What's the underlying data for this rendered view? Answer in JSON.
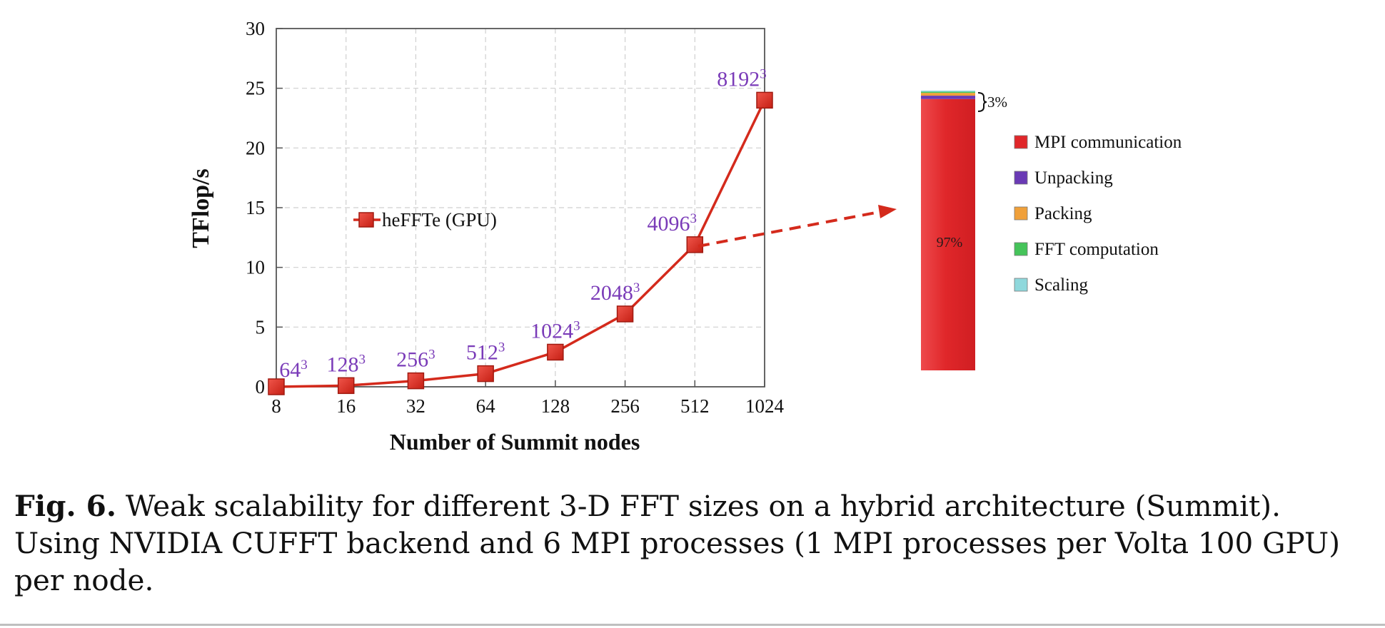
{
  "chart_data": [
    {
      "type": "line",
      "xlabel": "Number of Summit nodes",
      "ylabel": "TFlop/s",
      "categories": [
        "8",
        "16",
        "32",
        "64",
        "128",
        "256",
        "512",
        "1024"
      ],
      "y_ticks": [
        "0",
        "5",
        "10",
        "15",
        "20",
        "25",
        "30"
      ],
      "ylim": [
        0,
        30
      ],
      "grid": true,
      "legend_position": "middle-left",
      "series": [
        {
          "name": "heFFTe (GPU)",
          "color": "#d42a1c",
          "marker": "square",
          "values": [
            0.0,
            0.1,
            0.5,
            1.1,
            2.9,
            6.1,
            11.9,
            24.0
          ],
          "point_labels": [
            {
              "base": "64",
              "exp": "3"
            },
            {
              "base": "128",
              "exp": "3"
            },
            {
              "base": "256",
              "exp": "3"
            },
            {
              "base": "512",
              "exp": "3"
            },
            {
              "base": "1024",
              "exp": "3"
            },
            {
              "base": "2048",
              "exp": "3"
            },
            {
              "base": "4096",
              "exp": "3"
            },
            {
              "base": "8192",
              "exp": "3"
            }
          ]
        }
      ],
      "label_color": "#7a3bb8"
    },
    {
      "type": "bar",
      "stacked": true,
      "legend_position": "right",
      "series": [
        {
          "name": "MPI communication",
          "value": 97,
          "color": "#e0272a"
        },
        {
          "name": "Unpacking",
          "value": 1.2,
          "color": "#6a3ab5"
        },
        {
          "name": "Packing",
          "value": 1.0,
          "color": "#f0a03a"
        },
        {
          "name": "FFT computation",
          "value": 0.4,
          "color": "#45c45a"
        },
        {
          "name": "Scaling",
          "value": 0.4,
          "color": "#8fd8dc"
        }
      ],
      "inside_label": "97%",
      "bracket_label": "3%"
    }
  ],
  "caption": {
    "label": "Fig. 6.",
    "text": "Weak scalability for different 3-D FFT sizes on a hybrid architecture (Summit). Using NVIDIA CUFFT backend and 6 MPI processes (1 MPI processes per Volta 100 GPU) per node."
  }
}
